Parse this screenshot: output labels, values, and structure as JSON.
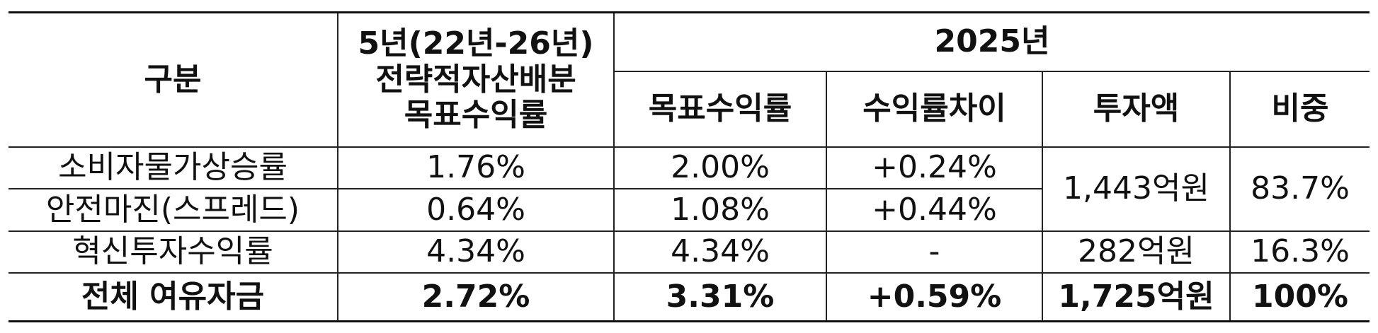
{
  "header": {
    "category": "구분",
    "five_year_target": "5년(22년-26년)\n전략적자산배분\n목표수익률",
    "year": "2025년",
    "target_return": "목표수익률",
    "return_diff": "수익률차이",
    "investment": "투자액",
    "weight": "비중"
  },
  "rows": [
    {
      "category": "소비자물가상승률",
      "five_year": "1.76%",
      "target": "2.00%",
      "diff": "+0.24%"
    },
    {
      "category": "안전마진(스프레드)",
      "five_year": "0.64%",
      "target": "1.08%",
      "diff": "+0.44%"
    },
    {
      "category": "혁신투자수익률",
      "five_year": "4.34%",
      "target": "4.34%",
      "diff": "-",
      "investment": "282억원",
      "weight": "16.3%"
    }
  ],
  "merged": {
    "investment": "1,443억원",
    "weight": "83.7%"
  },
  "total": {
    "category": "전체 여유자금",
    "five_year": "2.72%",
    "target": "3.31%",
    "diff": "+0.59%",
    "investment": "1,725억원",
    "weight": "100%"
  }
}
